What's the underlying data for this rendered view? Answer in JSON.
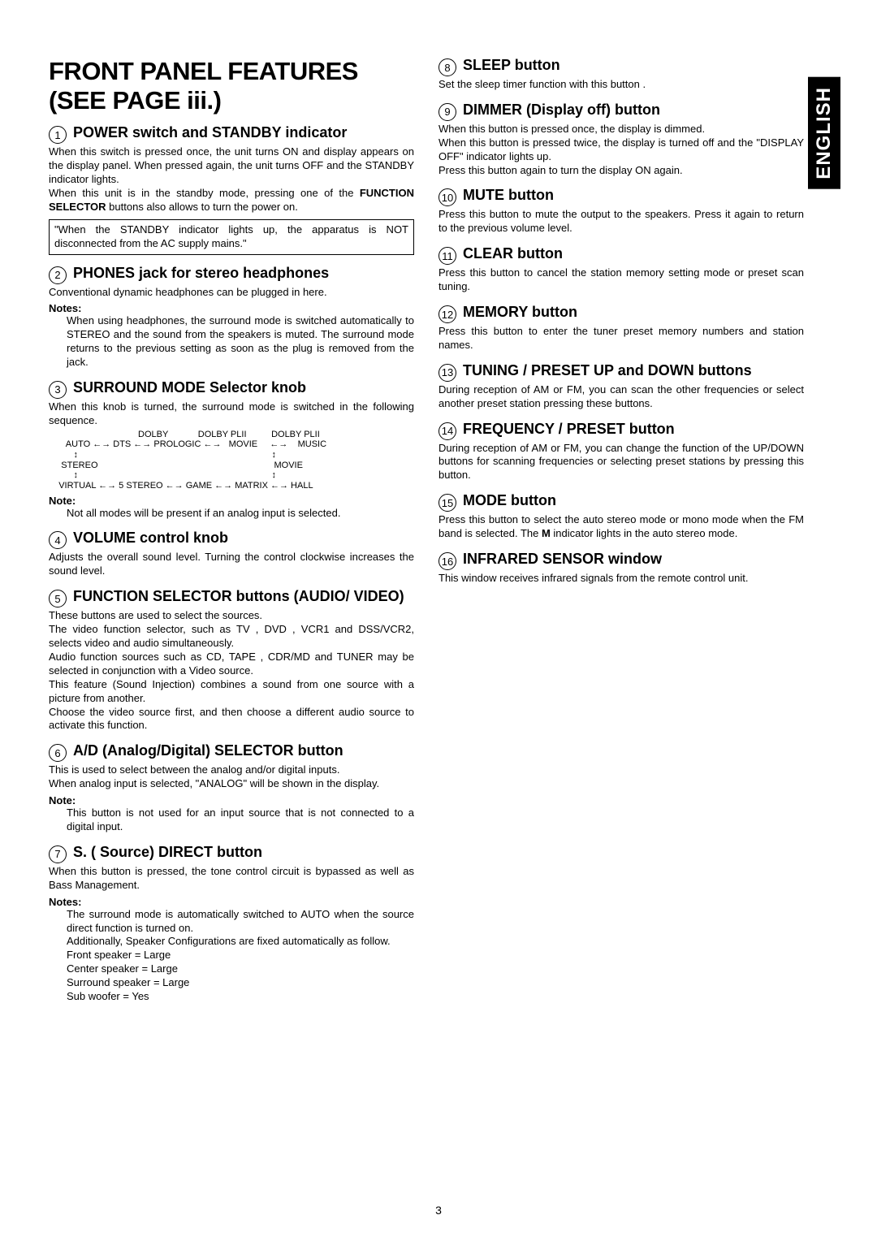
{
  "language_tab": "ENGLISH",
  "page_number": "3",
  "title": "FRONT PANEL FEATURES (SEE PAGE iii.)",
  "left": {
    "s1": {
      "num": "1",
      "title": "POWER switch and STANDBY indicator",
      "p1": "When this switch is pressed once, the unit turns ON and display appears on the display panel. When pressed again, the unit turns OFF and the STANDBY indicator lights.",
      "p2a": "When this unit is in the standby mode, pressing one of the ",
      "p2b": "FUNCTION SELECTOR",
      "p2c": " buttons also allows to turn the power on.",
      "box": "\"When the STANDBY indicator lights up, the apparatus is NOT disconnected from the AC supply mains.\""
    },
    "s2": {
      "num": "2",
      "title": "PHONES jack for stereo headphones",
      "p1": "Conventional dynamic headphones can be plugged in here.",
      "notes_label": "Notes:",
      "note": "When using headphones, the surround mode is switched automatically to STEREO and the sound from the speakers is muted. The surround mode returns to the previous setting as soon as the plug is removed from the jack."
    },
    "s3": {
      "num": "3",
      "title": "SURROUND MODE Selector knob",
      "p1": "When this knob is turned, the surround mode is switched in the following sequence.",
      "note_label": "Note:",
      "note": "Not all modes will be present if an analog input is selected."
    },
    "s4": {
      "num": "4",
      "title": "VOLUME control knob",
      "p1": "Adjusts the overall sound level. Turning the control clockwise increases the sound level."
    },
    "s5": {
      "num": "5",
      "title": "FUNCTION SELECTOR buttons (AUDIO/ VIDEO)",
      "p1": "These buttons are used to select the sources.",
      "p2": "The video function selector, such as TV , DVD , VCR1 and DSS/VCR2, selects video and audio simultaneously.",
      "p3": "Audio function sources such as CD, TAPE , CDR/MD and TUNER may be selected in conjunction with a Video source.",
      "p4": "This feature (Sound Injection) combines a sound from one source with a picture from another.",
      "p5": "Choose the video source first, and then choose a different audio source to activate this function."
    },
    "s6": {
      "num": "6",
      "title": "A/D (Analog/Digital) SELECTOR button",
      "p1": "This is used to select between the analog and/or digital inputs.",
      "p2": "When analog input is selected, \"ANALOG\" will be shown in the display.",
      "note_label": "Note:",
      "note": "This button is not used for an input source that is not connected to a digital input."
    },
    "s7": {
      "num": "7",
      "title": "S. ( Source) DIRECT button",
      "p1": "When this button is pressed, the tone control circuit is bypassed as well as Bass Management.",
      "notes_label": "Notes:",
      "n1": "The surround mode is automatically switched to AUTO when the source direct function is turned on.",
      "n2": "Additionally, Speaker Configurations are fixed automatically as follow.",
      "n3": "Front speaker = Large",
      "n4": "Center speaker = Large",
      "n5": "Surround speaker = Large",
      "n6": "Sub woofer = Yes"
    }
  },
  "right": {
    "s8": {
      "num": "8",
      "title": "SLEEP button",
      "p1": "Set the sleep timer function with this button ."
    },
    "s9": {
      "num": "9",
      "title": "DIMMER (Display off) button",
      "p1": "When this button is pressed once, the display is dimmed.",
      "p2": "When this button is pressed twice, the display is turned off and the \"DISPLAY OFF\" indicator lights up.",
      "p3": "Press this button again to turn the display ON again."
    },
    "s10": {
      "num": "10",
      "title": "MUTE button",
      "p1": "Press this button to mute the output to the speakers. Press it again to return to the previous volume level."
    },
    "s11": {
      "num": "11",
      "title": "CLEAR button",
      "p1": "Press this button to cancel the station memory setting mode or preset scan tuning."
    },
    "s12": {
      "num": "12",
      "title": "MEMORY button",
      "p1": "Press this button to enter the tuner preset memory numbers and station names."
    },
    "s13": {
      "num": "13",
      "title": "TUNING / PRESET UP and DOWN buttons",
      "p1": "During reception of AM or FM, you can scan the other frequencies or select another preset station pressing these buttons."
    },
    "s14": {
      "num": "14",
      "title": "FREQUENCY / PRESET button",
      "p1": "During reception of AM or FM, you can change the function of the UP/DOWN buttons for  scanning frequencies or selecting preset stations by pressing this button."
    },
    "s15": {
      "num": "15",
      "title": "MODE button",
      "p1a": "Press this button to select the auto stereo mode or mono mode when the FM band is selected. The ",
      "p1b": "M",
      "p1c": " indicator lights in the auto stereo mode."
    },
    "s16": {
      "num": "16",
      "title": "INFRARED SENSOR window",
      "p1": "This window receives infrared signals from the remote control unit."
    }
  }
}
